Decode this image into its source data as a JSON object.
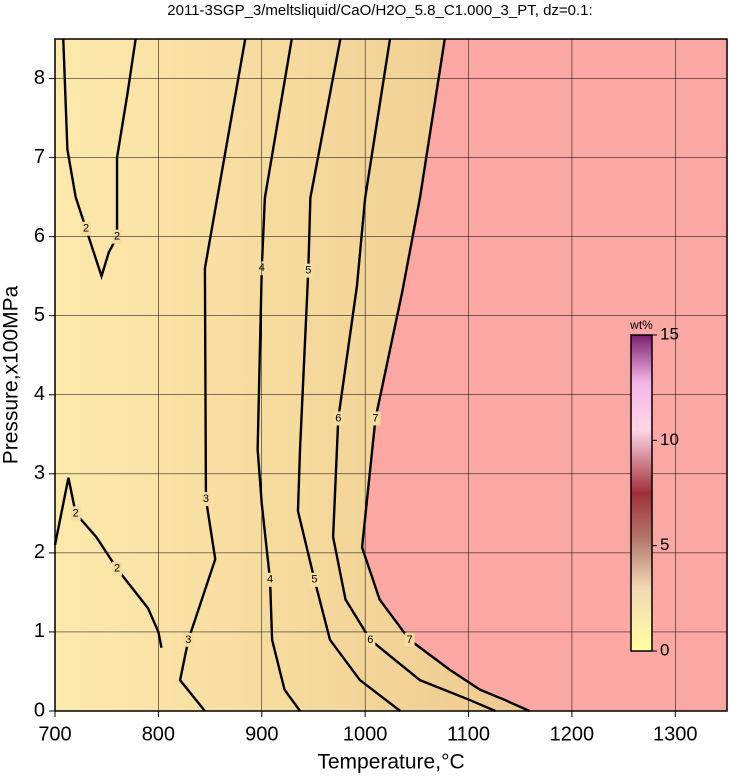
{
  "chart_data": {
    "type": "contour",
    "title": "2011-3SGP_3/meltsliquid/CaO/H2O_5.8_C1.000_3_PT, dz=0.1:",
    "x_label": "Temperature,°C",
    "y_label": "Pressure,x100MPa",
    "xlim": [
      700,
      1350
    ],
    "ylim": [
      0,
      8.5
    ],
    "xticks": [
      700,
      800,
      900,
      1000,
      1100,
      1200,
      1300
    ],
    "yticks": [
      0,
      1,
      2,
      3,
      4,
      5,
      6,
      7,
      8
    ],
    "grid": true,
    "series": [
      {
        "name": "2",
        "x": [
          708,
          712,
          720,
          730,
          745,
          752,
          760,
          760,
          770,
          778
        ],
        "y": [
          8.5,
          7.1,
          6.5,
          6.1,
          5.5,
          5.8,
          6.0,
          7.0,
          7.8,
          8.5
        ]
      },
      {
        "name": "2",
        "x": [
          700,
          713,
          720,
          740,
          760,
          790,
          800,
          803
        ],
        "y": [
          2.1,
          2.95,
          2.5,
          2.2,
          1.8,
          1.3,
          1.0,
          0.8
        ]
      },
      {
        "name": "3",
        "x": [
          884,
          845,
          846,
          855,
          829,
          821,
          845
        ],
        "y": [
          8.5,
          5.6,
          2.68,
          1.92,
          0.9,
          0.39,
          0
        ]
      },
      {
        "name": "4",
        "x": [
          929,
          903,
          900,
          896,
          900,
          908,
          910,
          922,
          937
        ],
        "y": [
          8.5,
          6.49,
          5.6,
          3.31,
          2.62,
          1.66,
          0.9,
          0.27,
          0
        ]
      },
      {
        "name": "5",
        "x": [
          976,
          947,
          945,
          937,
          935,
          951,
          966,
          995,
          1034
        ],
        "y": [
          8.5,
          6.49,
          5.57,
          3.31,
          2.53,
          1.66,
          0.9,
          0.39,
          0
        ]
      },
      {
        "name": "6",
        "x": [
          1024,
          1000,
          992,
          974,
          969,
          981,
          1005,
          1053,
          1101,
          1126
        ],
        "y": [
          8.5,
          6.49,
          5.37,
          3.7,
          2.2,
          1.41,
          0.9,
          0.39,
          0.14,
          0
        ]
      },
      {
        "name": "7",
        "x": [
          1077,
          1053,
          1036,
          1010,
          997,
          1014,
          1043,
          1082,
          1111,
          1135,
          1159
        ],
        "y": [
          8.5,
          6.49,
          5.31,
          3.7,
          2.07,
          1.41,
          0.9,
          0.52,
          0.27,
          0.14,
          0
        ]
      }
    ],
    "colorbar": {
      "label": "wt%",
      "lim": [
        0,
        15
      ],
      "ticks": [
        0,
        5,
        10,
        15
      ]
    }
  }
}
